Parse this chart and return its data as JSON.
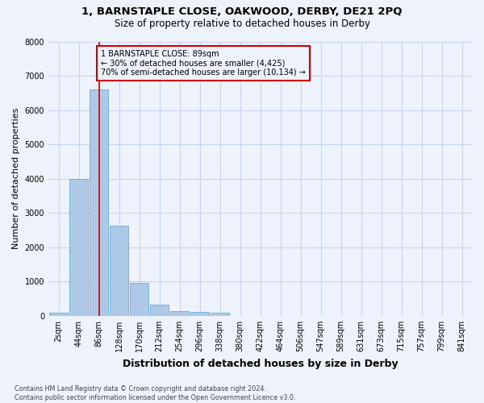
{
  "title_line1": "1, BARNSTAPLE CLOSE, OAKWOOD, DERBY, DE21 2PQ",
  "title_line2": "Size of property relative to detached houses in Derby",
  "xlabel": "Distribution of detached houses by size in Derby",
  "ylabel": "Number of detached properties",
  "bar_labels": [
    "2sqm",
    "44sqm",
    "86sqm",
    "128sqm",
    "170sqm",
    "212sqm",
    "254sqm",
    "296sqm",
    "338sqm",
    "380sqm",
    "422sqm",
    "464sqm",
    "506sqm",
    "547sqm",
    "589sqm",
    "631sqm",
    "673sqm",
    "715sqm",
    "757sqm",
    "799sqm",
    "841sqm"
  ],
  "bar_values": [
    80,
    4000,
    6600,
    2620,
    950,
    320,
    130,
    110,
    80,
    0,
    0,
    0,
    0,
    0,
    0,
    0,
    0,
    0,
    0,
    0,
    0
  ],
  "bar_color": "#aec8e8",
  "bar_edge_color": "#6aaad4",
  "vline_x_index": 2,
  "vline_color": "#cc0000",
  "annotation_line1": "1 BARNSTAPLE CLOSE: 89sqm",
  "annotation_line2": "← 30% of detached houses are smaller (4,425)",
  "annotation_line3": "70% of semi-detached houses are larger (10,134) →",
  "annotation_box_edge_color": "#cc0000",
  "ylim": [
    0,
    8000
  ],
  "yticks": [
    0,
    1000,
    2000,
    3000,
    4000,
    5000,
    6000,
    7000,
    8000
  ],
  "footnote": "Contains HM Land Registry data © Crown copyright and database right 2024.\nContains public sector information licensed under the Open Government Licence v3.0.",
  "bg_color": "#eef2fb",
  "grid_color": "#c8d4ea",
  "title1_fontsize": 9.5,
  "title2_fontsize": 8.5,
  "ylabel_fontsize": 8,
  "xlabel_fontsize": 9,
  "tick_fontsize": 7,
  "footnote_fontsize": 5.8
}
